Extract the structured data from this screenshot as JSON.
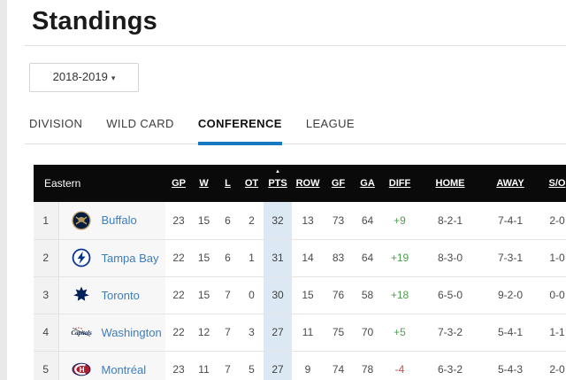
{
  "page": {
    "title": "Standings"
  },
  "season_dropdown": {
    "value": "2018-2019"
  },
  "tabs": {
    "division": {
      "label": "DIVISION"
    },
    "wildcard": {
      "label": "WILD CARD"
    },
    "conference": {
      "label": "CONFERENCE",
      "active": true
    },
    "league": {
      "label": "LEAGUE"
    }
  },
  "colors": {
    "accent_blue": "#1779be",
    "link_blue": "#3d7dbe",
    "positive_green": "#4d9e50",
    "negative_red": "#cc4b43",
    "header_bg": "#0a0a0a",
    "pts_highlight": "#dce9f4"
  },
  "table": {
    "conference_label": "Eastern",
    "sorted_column": "PTS",
    "sort_direction": "asc-arrow-up",
    "columns": [
      "GP",
      "W",
      "L",
      "OT",
      "PTS",
      "ROW",
      "GF",
      "GA",
      "DIFF",
      "HOME",
      "AWAY",
      "S/O"
    ],
    "rows": [
      {
        "rank": "1",
        "team": "Buffalo",
        "logo": "buffalo",
        "gp": "23",
        "w": "15",
        "l": "6",
        "ot": "2",
        "pts": "32",
        "row": "13",
        "gf": "73",
        "ga": "64",
        "diff": "+9",
        "home": "8-2-1",
        "away": "7-4-1",
        "so": "2-0"
      },
      {
        "rank": "2",
        "team": "Tampa Bay",
        "logo": "tampabay",
        "gp": "22",
        "w": "15",
        "l": "6",
        "ot": "1",
        "pts": "31",
        "row": "14",
        "gf": "83",
        "ga": "64",
        "diff": "+19",
        "home": "8-3-0",
        "away": "7-3-1",
        "so": "1-0"
      },
      {
        "rank": "3",
        "team": "Toronto",
        "logo": "toronto",
        "gp": "22",
        "w": "15",
        "l": "7",
        "ot": "0",
        "pts": "30",
        "row": "15",
        "gf": "76",
        "ga": "58",
        "diff": "+18",
        "home": "6-5-0",
        "away": "9-2-0",
        "so": "0-0"
      },
      {
        "rank": "4",
        "team": "Washington",
        "logo": "washington",
        "gp": "22",
        "w": "12",
        "l": "7",
        "ot": "3",
        "pts": "27",
        "row": "11",
        "gf": "75",
        "ga": "70",
        "diff": "+5",
        "home": "7-3-2",
        "away": "5-4-1",
        "so": "1-1"
      },
      {
        "rank": "5",
        "team": "Montréal",
        "logo": "montreal",
        "gp": "23",
        "w": "11",
        "l": "7",
        "ot": "5",
        "pts": "27",
        "row": "9",
        "gf": "74",
        "ga": "78",
        "diff": "-4",
        "home": "6-3-2",
        "away": "5-4-3",
        "so": "2-0"
      }
    ]
  }
}
